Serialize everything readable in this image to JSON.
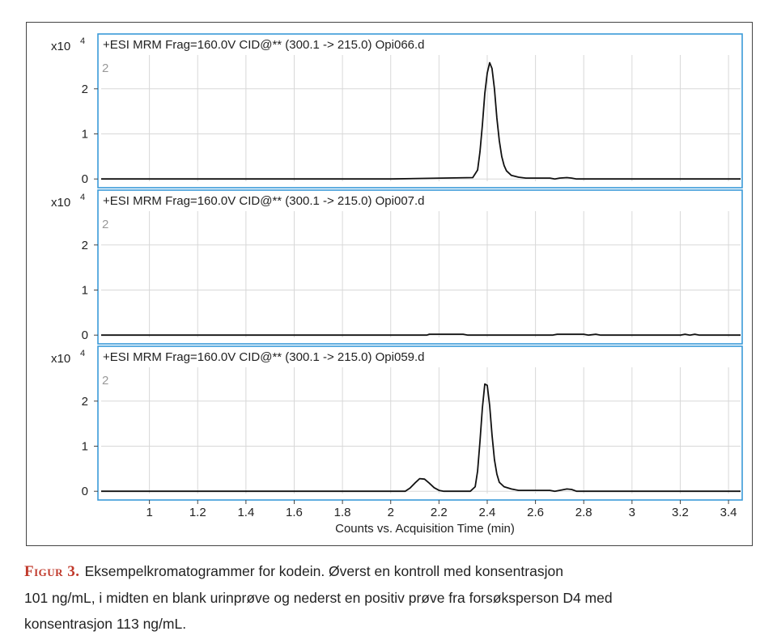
{
  "colors": {
    "panel_border": "#3a9ad9",
    "trace": "#111111",
    "grid": "#d8d8d8",
    "caption_label": "#c0392b"
  },
  "chart_data": [
    {
      "type": "line",
      "title": "+ESI MRM Frag=160.0V CID@** (300.1 -> 215.0) Opi066.d",
      "multiplier_label": "x10",
      "multiplier_exponent": "4",
      "panel_index_label": "2",
      "xlim": [
        0.8,
        3.45
      ],
      "ylim": [
        -0.05,
        2.75
      ],
      "yticks": [
        "0",
        "1",
        "2"
      ],
      "grid": true,
      "series": [
        {
          "x": [
            0.8,
            2.0,
            2.34,
            2.36,
            2.37,
            2.38,
            2.39,
            2.4,
            2.41,
            2.42,
            2.43,
            2.44,
            2.45,
            2.46,
            2.47,
            2.48,
            2.5,
            2.53,
            2.56,
            2.66,
            2.68,
            2.7,
            2.73,
            2.75,
            2.77,
            3.45
          ],
          "y": [
            0,
            0,
            0.03,
            0.2,
            0.6,
            1.2,
            1.9,
            2.35,
            2.58,
            2.45,
            2.0,
            1.35,
            0.85,
            0.5,
            0.3,
            0.18,
            0.08,
            0.04,
            0.02,
            0.02,
            0.0,
            0.02,
            0.03,
            0.02,
            0.0,
            0
          ]
        }
      ]
    },
    {
      "type": "line",
      "title": "+ESI MRM Frag=160.0V CID@** (300.1 -> 215.0) Opi007.d",
      "multiplier_label": "x10",
      "multiplier_exponent": "4",
      "panel_index_label": "2",
      "xlim": [
        0.8,
        3.45
      ],
      "ylim": [
        -0.05,
        2.75
      ],
      "yticks": [
        "0",
        "1",
        "2"
      ],
      "grid": true,
      "series": [
        {
          "x": [
            0.8,
            2.15,
            2.16,
            2.3,
            2.32,
            2.67,
            2.69,
            2.8,
            2.82,
            2.85,
            2.87,
            3.2,
            3.22,
            3.24,
            3.26,
            3.28,
            3.45
          ],
          "y": [
            0,
            0,
            0.02,
            0.02,
            0,
            0,
            0.02,
            0.02,
            0.0,
            0.02,
            0,
            0,
            0.02,
            0.0,
            0.02,
            0,
            0
          ]
        }
      ]
    },
    {
      "type": "line",
      "title": "+ESI MRM Frag=160.0V CID@** (300.1 -> 215.0) Opi059.d",
      "multiplier_label": "x10",
      "multiplier_exponent": "4",
      "panel_index_label": "2",
      "xlim": [
        0.8,
        3.45
      ],
      "ylim": [
        -0.05,
        2.75
      ],
      "yticks": [
        "0",
        "1",
        "2"
      ],
      "grid": true,
      "xticks": [
        "1",
        "1.2",
        "1.4",
        "1.6",
        "1.8",
        "2",
        "2.2",
        "2.4",
        "2.6",
        "2.8",
        "3",
        "3.2",
        "3.4"
      ],
      "xlabel": "Counts vs. Acquisition Time (min)",
      "series": [
        {
          "x": [
            0.8,
            2.06,
            2.08,
            2.1,
            2.12,
            2.14,
            2.16,
            2.18,
            2.2,
            2.22,
            2.33,
            2.35,
            2.36,
            2.37,
            2.38,
            2.39,
            2.4,
            2.41,
            2.42,
            2.43,
            2.44,
            2.45,
            2.47,
            2.5,
            2.53,
            2.56,
            2.66,
            2.68,
            2.7,
            2.73,
            2.75,
            2.77,
            3.45
          ],
          "y": [
            0,
            0,
            0.07,
            0.18,
            0.28,
            0.27,
            0.18,
            0.08,
            0.02,
            0,
            0,
            0.1,
            0.45,
            1.1,
            1.85,
            2.38,
            2.35,
            1.9,
            1.25,
            0.7,
            0.38,
            0.2,
            0.1,
            0.05,
            0.02,
            0.02,
            0.02,
            0.0,
            0.02,
            0.05,
            0.04,
            0.0,
            0
          ]
        }
      ]
    }
  ],
  "caption": {
    "label": "Figur 3.",
    "line1": "Eksempelkromatogrammer for kodein. Øverst en kontroll med konsentrasjon",
    "line2": "101 ng/mL, i midten en blank urinprøve og nederst en positiv prøve fra forsøksperson D4 med",
    "line3": "konsentrasjon 113 ng/mL."
  }
}
